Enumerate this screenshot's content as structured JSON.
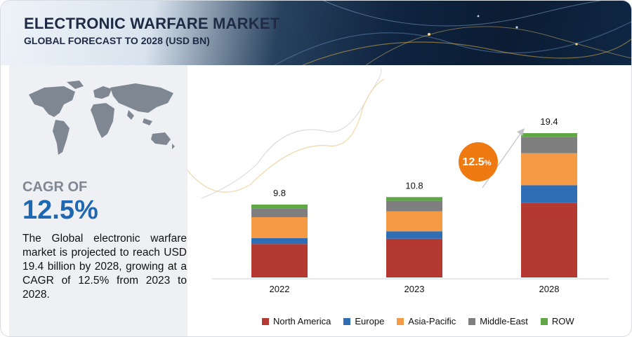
{
  "header": {
    "title": "ELECTRONIC WARFARE MARKET",
    "subtitle": "GLOBAL FORECAST TO 2028 (USD BN)"
  },
  "left_panel": {
    "cagr_label": "CAGR OF",
    "cagr_value": "12.5%",
    "description": "The Global electronic warfare market is projected to reach USD 19.4 billion by 2028, growing at a CAGR of 12.5% from 2023 to 2028."
  },
  "chart_data": {
    "type": "bar",
    "stacked": true,
    "categories": [
      "2022",
      "2023",
      "2028"
    ],
    "totals": [
      "9.8",
      "10.8",
      "19.4"
    ],
    "series": [
      {
        "name": "North America",
        "color": "#b43a31",
        "values": [
          4.5,
          5.2,
          10.0
        ]
      },
      {
        "name": "Europe",
        "color": "#2f6db5",
        "values": [
          0.8,
          1.0,
          2.4
        ]
      },
      {
        "name": "Asia-Pacific",
        "color": "#f59a45",
        "values": [
          2.8,
          2.7,
          4.3
        ]
      },
      {
        "name": "Middle-East",
        "color": "#7f7f7f",
        "values": [
          1.2,
          1.4,
          2.2
        ]
      },
      {
        "name": "ROW",
        "color": "#5fa845",
        "values": [
          0.5,
          0.5,
          0.5
        ]
      }
    ],
    "ylim": [
      0,
      19.4
    ],
    "grid": false,
    "legend_position": "bottom",
    "annotation": {
      "value": "12.5",
      "unit": "%",
      "color": "#f07a12"
    }
  }
}
